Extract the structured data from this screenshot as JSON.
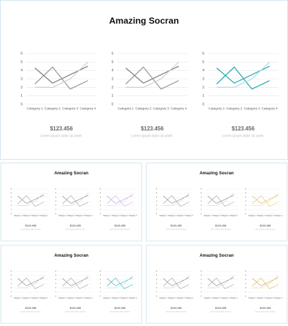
{
  "title": "Amazing Socran",
  "chart": {
    "type": "line",
    "categories": [
      "Category 1",
      "Category 2",
      "Category 3",
      "Category 4"
    ],
    "series": [
      {
        "values": [
          4.3,
          2.5,
          3.5,
          4.5
        ]
      },
      {
        "values": [
          2.4,
          4.4,
          1.8,
          2.8
        ]
      },
      {
        "values": [
          2.0,
          2.0,
          3.0,
          5.0
        ]
      }
    ],
    "ylim": [
      0,
      6
    ],
    "yticks": [
      0,
      1,
      2,
      3,
      4,
      5,
      6
    ],
    "grid": true
  },
  "price": "$123.456",
  "caption": "Lorem ipsum dolor sit amet.",
  "gray_colors": [
    "#7a7a7a",
    "#9a9a9a",
    "#d0d0d0"
  ],
  "slides": [
    {
      "accent_colors": [
        "#2aa7b0",
        "#2aa7b0",
        "#b2e0e3"
      ]
    },
    {
      "accent_colors": [
        "#b58fd6",
        "#c9a8e6",
        "#e3d2f2"
      ]
    },
    {
      "accent_colors": [
        "#d8b23a",
        "#e2c45c",
        "#f0dea0"
      ]
    },
    {
      "accent_colors": [
        "#2aa7b0",
        "#2aa7b0",
        "#b2e0e3"
      ]
    },
    {
      "accent_colors": [
        "#c89b2a",
        "#d8b04a",
        "#ead39a"
      ]
    }
  ]
}
